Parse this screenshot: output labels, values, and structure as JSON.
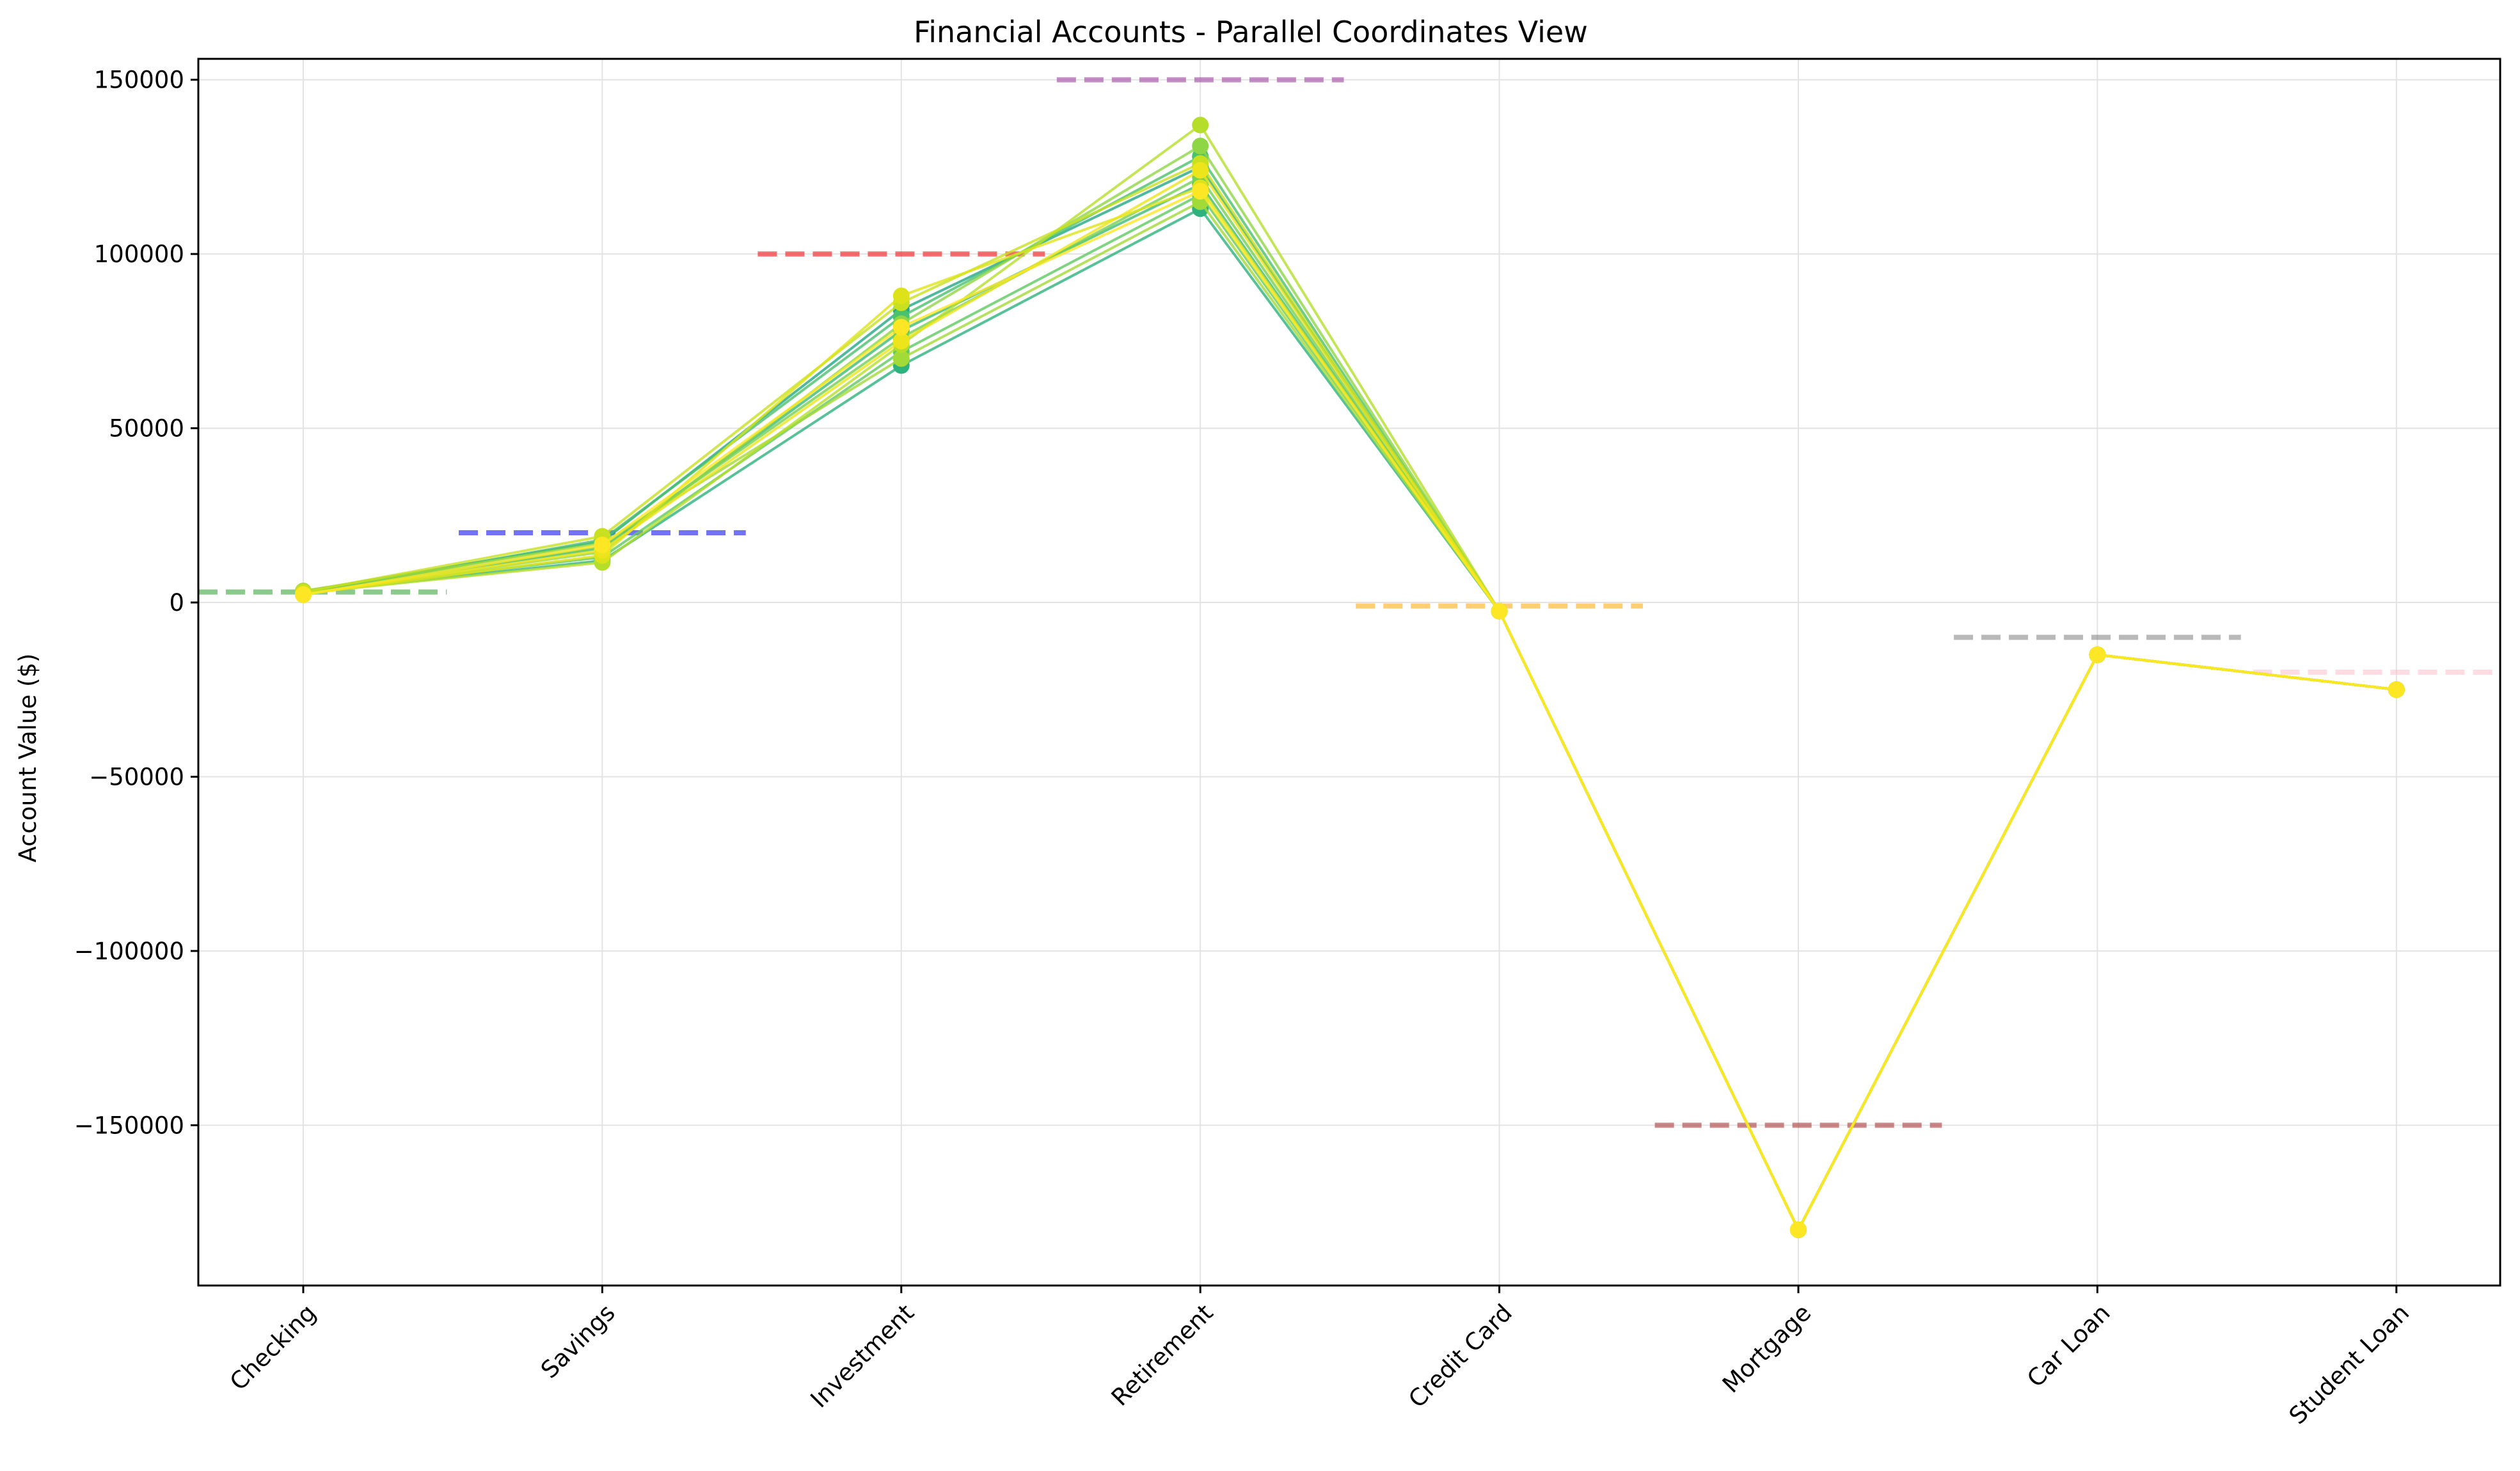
{
  "chart_data": {
    "type": "line",
    "title": "Financial Accounts - Parallel Coordinates View",
    "xlabel": "",
    "ylabel": "Account Value ($)",
    "categories": [
      "Checking",
      "Savings",
      "Investment",
      "Retirement",
      "Credit Card",
      "Mortgage",
      "Car Loan",
      "Student Loan"
    ],
    "ylim": [
      -196000,
      156000
    ],
    "yticks": [
      -150000,
      -100000,
      -50000,
      0,
      50000,
      100000,
      150000
    ],
    "ytick_labels": [
      "−150000",
      "−100000",
      "−50000",
      "0",
      "50000",
      "100000",
      "150000"
    ],
    "grid": true,
    "legend": "none",
    "line_colors": [
      "#22a884",
      "#2db27d",
      "#3bbb75",
      "#4ac16d",
      "#5ec962",
      "#75d054",
      "#8ed645",
      "#a2da37",
      "#b5de2b",
      "#c8e020",
      "#dde318",
      "#ece51b",
      "#fde725"
    ],
    "reference_lines": [
      {
        "category": "Checking",
        "value": 3000,
        "color": "#2ca02c"
      },
      {
        "category": "Savings",
        "value": 20000,
        "color": "#0000ee"
      },
      {
        "category": "Investment",
        "value": 100000,
        "color": "#ee0000"
      },
      {
        "category": "Retirement",
        "value": 150000,
        "color": "#993399"
      },
      {
        "category": "Credit Card",
        "value": -1000,
        "color": "#ffa500"
      },
      {
        "category": "Mortgage",
        "value": -150000,
        "color": "#a52a2a"
      },
      {
        "category": "Car Loan",
        "value": -10000,
        "color": "#808080"
      },
      {
        "category": "Student Loan",
        "value": -20000,
        "color": "#ffc0cb"
      }
    ],
    "series": [
      {
        "values": [
          3200,
          17500,
          84000,
          125000,
          -2500,
          -180000,
          -15000,
          -25000
        ]
      },
      {
        "values": [
          2800,
          12000,
          68000,
          113000,
          -2500,
          -180000,
          -15000,
          -25000
        ]
      },
      {
        "values": [
          3000,
          15500,
          78000,
          120000,
          -2500,
          -180000,
          -15000,
          -25000
        ]
      },
      {
        "values": [
          2500,
          18000,
          82000,
          128000,
          -2500,
          -180000,
          -15000,
          -25000
        ]
      },
      {
        "values": [
          3100,
          13000,
          72000,
          117000,
          -2500,
          -180000,
          -15000,
          -25000
        ]
      },
      {
        "values": [
          2900,
          16000,
          76000,
          122000,
          -2500,
          -180000,
          -15000,
          -25000
        ]
      },
      {
        "values": [
          2600,
          14500,
          80000,
          131000,
          -2500,
          -180000,
          -15000,
          -25000
        ]
      },
      {
        "values": [
          3300,
          17000,
          70000,
          115000,
          -2500,
          -180000,
          -15000,
          -25000
        ]
      },
      {
        "values": [
          2700,
          11500,
          74000,
          137000,
          -2500,
          -180000,
          -15000,
          -25000
        ]
      },
      {
        "values": [
          3000,
          19000,
          86000,
          126000,
          -2500,
          -180000,
          -15000,
          -25000
        ]
      },
      {
        "values": [
          2400,
          13500,
          88000,
          119000,
          -2500,
          -180000,
          -15000,
          -25000
        ]
      },
      {
        "values": [
          2300,
          15000,
          75000,
          124000,
          -2500,
          -180000,
          -15000,
          -25000
        ]
      },
      {
        "values": [
          2200,
          16500,
          79000,
          118000,
          -2500,
          -180000,
          -15000,
          -25000
        ]
      }
    ]
  }
}
